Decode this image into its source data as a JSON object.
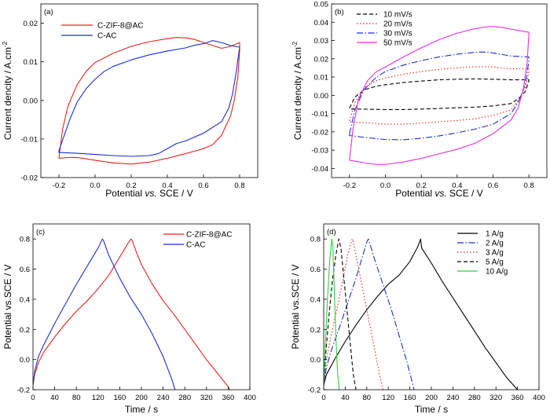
{
  "chart_data": [
    {
      "type": "line",
      "panel_label": "(a)",
      "xlabel_parts": [
        "Potential ",
        "vs.",
        " SCE / V"
      ],
      "ylabel": "Current dencity / A.cm",
      "ylabel_sup": "-2",
      "xlim": [
        -0.3,
        0.9
      ],
      "ylim": [
        -0.02,
        0.025
      ],
      "xticks": [
        -0.2,
        0.0,
        0.2,
        0.4,
        0.6,
        0.8
      ],
      "xtick_labels": [
        "-0.2",
        "0.0",
        "0.2",
        "0.4",
        "0.6",
        "0.8"
      ],
      "yticks": [
        -0.02,
        -0.01,
        0.0,
        0.01,
        0.02
      ],
      "ytick_labels": [
        "-0.02",
        "-0.01",
        "0.00",
        "0.01",
        "0.02"
      ],
      "legend_position": "top-left",
      "series": [
        {
          "name": "C-ZIF-8@AC",
          "color": "#e8221e",
          "closed": true,
          "x": [
            -0.2,
            -0.18,
            -0.15,
            -0.1,
            -0.05,
            0.0,
            0.05,
            0.1,
            0.2,
            0.3,
            0.4,
            0.45,
            0.5,
            0.55,
            0.6,
            0.7,
            0.75,
            0.8,
            0.8,
            0.79,
            0.77,
            0.75,
            0.72,
            0.7,
            0.65,
            0.6,
            0.5,
            0.4,
            0.3,
            0.2,
            0.1,
            0.0,
            -0.1,
            -0.15,
            -0.2,
            -0.2
          ],
          "y": [
            -0.015,
            -0.0075,
            -0.0015,
            0.004,
            0.0075,
            0.0098,
            0.011,
            0.0122,
            0.014,
            0.0152,
            0.016,
            0.0163,
            0.0162,
            0.0158,
            0.015,
            0.0135,
            0.014,
            0.015,
            0.013,
            0.006,
            0.0,
            -0.004,
            -0.007,
            -0.009,
            -0.0115,
            -0.0125,
            -0.0138,
            -0.015,
            -0.016,
            -0.0165,
            -0.0162,
            -0.0155,
            -0.0148,
            -0.0148,
            -0.015,
            -0.015
          ]
        },
        {
          "name": "C-AC",
          "color": "#1a2fd6",
          "closed": true,
          "x": [
            -0.2,
            -0.17,
            -0.14,
            -0.1,
            -0.05,
            0.0,
            0.05,
            0.1,
            0.2,
            0.3,
            0.4,
            0.5,
            0.55,
            0.6,
            0.65,
            0.7,
            0.75,
            0.8,
            0.8,
            0.78,
            0.76,
            0.74,
            0.7,
            0.6,
            0.5,
            0.45,
            0.4,
            0.35,
            0.3,
            0.2,
            0.1,
            0.0,
            -0.1,
            -0.2,
            -0.2
          ],
          "y": [
            -0.013,
            -0.009,
            -0.005,
            -0.0005,
            0.003,
            0.0055,
            0.0075,
            0.0088,
            0.0105,
            0.0118,
            0.0128,
            0.0136,
            0.0143,
            0.0147,
            0.0155,
            0.015,
            0.0142,
            0.0138,
            0.0138,
            0.007,
            0.0015,
            -0.002,
            -0.0055,
            -0.0085,
            -0.0105,
            -0.0112,
            -0.0125,
            -0.0138,
            -0.0143,
            -0.0145,
            -0.0143,
            -0.014,
            -0.0137,
            -0.0135,
            -0.013
          ]
        }
      ]
    },
    {
      "type": "line",
      "panel_label": "(b)",
      "xlabel_parts": [
        "Potential ",
        "vs.",
        " SCE / V"
      ],
      "ylabel": "Current dencity / A.cm",
      "ylabel_sup": "-2",
      "xlim": [
        -0.3,
        0.9
      ],
      "ylim": [
        -0.045,
        0.05
      ],
      "xticks": [
        -0.2,
        0.0,
        0.2,
        0.4,
        0.6,
        0.8
      ],
      "xtick_labels": [
        "-0.2",
        "0.0",
        "0.2",
        "0.4",
        "0.6",
        "0.8"
      ],
      "yticks": [
        -0.04,
        -0.03,
        -0.02,
        -0.01,
        0.0,
        0.01,
        0.02,
        0.03,
        0.04,
        0.05
      ],
      "ytick_labels": [
        "-0.04",
        "-0.03",
        "-0.02",
        "-0.01",
        "0.00",
        "0.01",
        "0.02",
        "0.03",
        "0.04",
        "0.05"
      ],
      "legend_position": "top-left",
      "series": [
        {
          "name": "10 mV/s",
          "color": "#000000",
          "dash": "5,3",
          "closed": true,
          "x": [
            -0.2,
            -0.17,
            -0.12,
            -0.05,
            0.0,
            0.1,
            0.2,
            0.3,
            0.4,
            0.5,
            0.6,
            0.7,
            0.8,
            0.8,
            0.78,
            0.74,
            0.7,
            0.6,
            0.5,
            0.4,
            0.3,
            0.2,
            0.1,
            0.0,
            -0.1,
            -0.2,
            -0.2
          ],
          "y": [
            -0.007,
            -0.001,
            0.003,
            0.005,
            0.0058,
            0.007,
            0.0078,
            0.0085,
            0.0088,
            0.009,
            0.0088,
            0.0085,
            0.0085,
            0.008,
            0.002,
            -0.002,
            -0.0045,
            -0.0058,
            -0.0065,
            -0.0068,
            -0.0072,
            -0.0075,
            -0.0078,
            -0.0078,
            -0.0076,
            -0.0075,
            -0.007
          ]
        },
        {
          "name": "20 mV/s",
          "color": "#e8221e",
          "dash": "1.5,2.5",
          "closed": true,
          "x": [
            -0.2,
            -0.17,
            -0.12,
            -0.05,
            0.0,
            0.1,
            0.2,
            0.3,
            0.4,
            0.5,
            0.6,
            0.7,
            0.8,
            0.8,
            0.78,
            0.74,
            0.7,
            0.6,
            0.5,
            0.4,
            0.3,
            0.2,
            0.1,
            0.0,
            -0.1,
            -0.2,
            -0.2
          ],
          "y": [
            -0.014,
            -0.004,
            0.004,
            0.008,
            0.0095,
            0.0115,
            0.013,
            0.0142,
            0.015,
            0.0157,
            0.0155,
            0.0145,
            0.0145,
            0.013,
            0.004,
            -0.003,
            -0.008,
            -0.011,
            -0.0128,
            -0.0138,
            -0.0145,
            -0.0152,
            -0.0158,
            -0.0158,
            -0.015,
            -0.0145,
            -0.014
          ]
        },
        {
          "name": "30 mV/s",
          "color": "#1a2fd6",
          "dash": "8,2.5,1.5,2.5",
          "closed": true,
          "x": [
            -0.2,
            -0.17,
            -0.12,
            -0.05,
            0.0,
            0.1,
            0.2,
            0.3,
            0.4,
            0.5,
            0.55,
            0.6,
            0.7,
            0.8,
            0.8,
            0.78,
            0.74,
            0.7,
            0.6,
            0.5,
            0.4,
            0.3,
            0.2,
            0.1,
            0.0,
            -0.1,
            -0.2,
            -0.2
          ],
          "y": [
            -0.021,
            -0.008,
            0.003,
            0.01,
            0.013,
            0.0165,
            0.019,
            0.021,
            0.0225,
            0.0235,
            0.0237,
            0.0232,
            0.0215,
            0.021,
            0.019,
            0.006,
            -0.004,
            -0.01,
            -0.0158,
            -0.0185,
            -0.0205,
            -0.0222,
            -0.0235,
            -0.0243,
            -0.0242,
            -0.0232,
            -0.022,
            -0.021
          ]
        },
        {
          "name": "50 mV/s",
          "color": "#e82ce0",
          "closed": true,
          "x": [
            -0.2,
            -0.18,
            -0.15,
            -0.1,
            -0.05,
            0.0,
            0.1,
            0.2,
            0.3,
            0.4,
            0.5,
            0.58,
            0.65,
            0.7,
            0.8,
            0.8,
            0.79,
            0.77,
            0.74,
            0.7,
            0.6,
            0.5,
            0.4,
            0.3,
            0.2,
            0.1,
            0.0,
            -0.05,
            -0.1,
            -0.2,
            -0.2
          ],
          "y": [
            -0.035,
            -0.018,
            -0.002,
            0.008,
            0.013,
            0.0155,
            0.021,
            0.026,
            0.0305,
            0.034,
            0.0365,
            0.0377,
            0.0372,
            0.0362,
            0.0345,
            0.0335,
            0.018,
            0.004,
            -0.007,
            -0.0135,
            -0.021,
            -0.0262,
            -0.0295,
            -0.032,
            -0.0345,
            -0.0365,
            -0.0378,
            -0.0378,
            -0.0372,
            -0.0355,
            -0.035
          ]
        }
      ]
    },
    {
      "type": "line",
      "panel_label": "(c)",
      "xlabel": "Time / s",
      "ylabel": "Potential vs.SCE / V",
      "xlim": [
        0,
        400
      ],
      "ylim": [
        -0.2,
        0.9
      ],
      "xticks": [
        0,
        40,
        80,
        120,
        160,
        200,
        240,
        280,
        320,
        360,
        400
      ],
      "xtick_labels": [
        "0",
        "40",
        "80",
        "120",
        "160",
        "200",
        "240",
        "280",
        "320",
        "360",
        "400"
      ],
      "yticks": [
        -0.2,
        0.0,
        0.2,
        0.4,
        0.6,
        0.8
      ],
      "ytick_labels": [
        "-0.2",
        "0.0",
        "0.2",
        "0.4",
        "0.6",
        "0.8"
      ],
      "legend_position": "top-right",
      "series": [
        {
          "name": "C-ZIF-8@AC",
          "color": "#e8221e",
          "x": [
            0,
            3,
            10,
            20,
            40,
            60,
            80,
            100,
            120,
            140,
            160,
            175,
            181,
            183,
            190,
            200,
            220,
            240,
            260,
            280,
            300,
            320,
            340,
            360,
            363
          ],
          "y": [
            -0.17,
            -0.1,
            -0.02,
            0.05,
            0.15,
            0.24,
            0.32,
            0.39,
            0.47,
            0.56,
            0.68,
            0.77,
            0.8,
            0.79,
            0.72,
            0.63,
            0.5,
            0.39,
            0.3,
            0.2,
            0.1,
            0.0,
            -0.09,
            -0.18,
            -0.2
          ]
        },
        {
          "name": "C-AC",
          "color": "#1a2fd6",
          "x": [
            0,
            3,
            10,
            20,
            40,
            60,
            80,
            100,
            120,
            128,
            130,
            140,
            160,
            180,
            200,
            220,
            240,
            255,
            262
          ],
          "y": [
            -0.17,
            -0.08,
            0.02,
            0.1,
            0.24,
            0.37,
            0.5,
            0.62,
            0.74,
            0.8,
            0.79,
            0.69,
            0.54,
            0.41,
            0.3,
            0.17,
            0.02,
            -0.12,
            -0.2
          ]
        }
      ]
    },
    {
      "type": "line",
      "panel_label": "(d)",
      "xlabel": "Time / s",
      "ylabel": "Potential vs.SCE / V",
      "xlim": [
        0,
        400
      ],
      "ylim": [
        -0.2,
        0.9
      ],
      "xticks": [
        0,
        40,
        80,
        120,
        160,
        200,
        240,
        280,
        320,
        360,
        400
      ],
      "xtick_labels": [
        "0",
        "40",
        "80",
        "120",
        "160",
        "200",
        "240",
        "280",
        "320",
        "360",
        "400"
      ],
      "yticks": [
        -0.2,
        0.0,
        0.2,
        0.4,
        0.6,
        0.8
      ],
      "ytick_labels": [
        "-0.2",
        "0.0",
        "0.2",
        "0.4",
        "0.6",
        "0.8"
      ],
      "legend_position": "top-right",
      "series": [
        {
          "name": "1 A/g",
          "color": "#000000",
          "x": [
            0,
            5,
            20,
            40,
            60,
            80,
            100,
            120,
            140,
            160,
            175,
            180,
            182,
            200,
            220,
            240,
            260,
            280,
            300,
            320,
            340,
            360,
            365
          ],
          "y": [
            -0.17,
            -0.1,
            0.0,
            0.12,
            0.23,
            0.33,
            0.42,
            0.5,
            0.56,
            0.65,
            0.75,
            0.8,
            0.74,
            0.64,
            0.52,
            0.41,
            0.3,
            0.19,
            0.08,
            -0.02,
            -0.12,
            -0.2,
            -0.22
          ]
        },
        {
          "name": "2 A/g",
          "color": "#1a2fd6",
          "dash": "8,2.5,1.5,2.5",
          "x": [
            0,
            5,
            15,
            30,
            45,
            60,
            70,
            80,
            83,
            95,
            110,
            125,
            140,
            155,
            168
          ],
          "y": [
            -0.17,
            -0.05,
            0.07,
            0.22,
            0.38,
            0.54,
            0.66,
            0.78,
            0.8,
            0.66,
            0.5,
            0.34,
            0.16,
            -0.02,
            -0.2
          ]
        },
        {
          "name": "3 A/g",
          "color": "#e8221e",
          "dash": "1.5,2.5",
          "x": [
            0,
            5,
            15,
            25,
            35,
            45,
            53,
            55,
            65,
            75,
            85,
            95,
            105,
            110
          ],
          "y": [
            -0.17,
            0.0,
            0.18,
            0.34,
            0.52,
            0.7,
            0.8,
            0.78,
            0.6,
            0.42,
            0.24,
            0.06,
            -0.12,
            -0.2
          ]
        },
        {
          "name": "5 A/g",
          "color": "#000000",
          "dash": "5,3",
          "x": [
            0,
            4,
            10,
            16,
            22,
            28,
            32,
            38,
            44,
            50,
            55,
            60
          ],
          "y": [
            -0.17,
            0.05,
            0.3,
            0.52,
            0.68,
            0.8,
            0.74,
            0.52,
            0.3,
            0.08,
            -0.1,
            -0.2
          ]
        },
        {
          "name": "10 A/g",
          "color": "#2ad43a",
          "x": [
            0,
            3,
            7,
            11,
            15,
            17,
            20,
            23,
            26,
            29
          ],
          "y": [
            -0.17,
            0.1,
            0.4,
            0.65,
            0.8,
            0.75,
            0.42,
            0.12,
            -0.1,
            -0.2
          ]
        }
      ]
    }
  ]
}
